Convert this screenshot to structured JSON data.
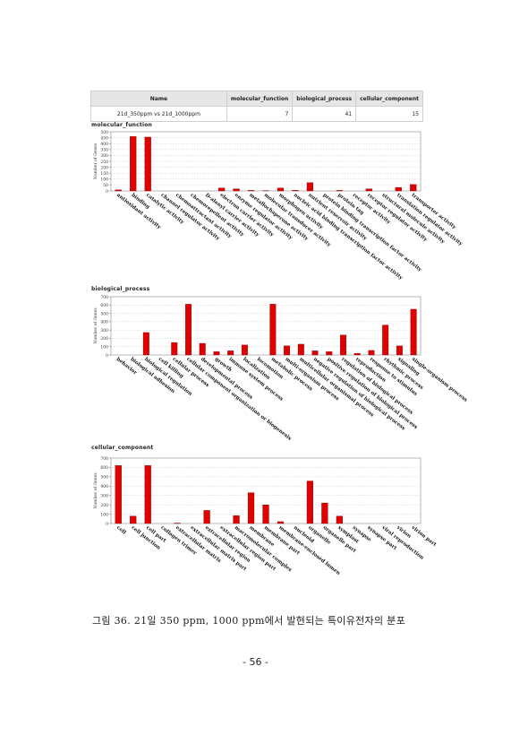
{
  "table": {
    "headers": [
      "Name",
      "molecular_function",
      "biological_process",
      "cellular_component"
    ],
    "row": [
      "21d_350ppm vs 21d_1000ppm",
      "7",
      "41",
      "15"
    ]
  },
  "colors": {
    "bar": "#e00000",
    "grid": "#c8c8c8"
  },
  "chart_data": [
    {
      "type": "bar",
      "title": "molecular_function",
      "ylabel": "Number of Genes",
      "ylim": [
        0,
        500
      ],
      "yticks": [
        0,
        50,
        100,
        150,
        200,
        250,
        300,
        350,
        400,
        450,
        500
      ],
      "categories": [
        "antioxidant activity",
        "binding",
        "catalytic activity",
        "channel regulator activity",
        "chemoattractant activity",
        "chemorepellent activity",
        "D-alanyl carrier activity",
        "electron carrier activity",
        "enzyme regulator activity",
        "metallochaperone activity",
        "molecular transducer activity",
        "morphogen activity",
        "nucleic acid binding transcription factor activity",
        "nutrient reservoir activity",
        "protein binding transcription factor activity",
        "protein tag",
        "receptor activity",
        "receptor regulator activity",
        "structural molecule activity",
        "translation regulator activity",
        "transporter activity"
      ],
      "values": [
        10,
        460,
        455,
        0,
        0,
        0,
        0,
        25,
        18,
        5,
        3,
        25,
        5,
        70,
        0,
        5,
        0,
        18,
        0,
        30,
        55
      ],
      "grid": true
    },
    {
      "type": "bar",
      "title": "biological_process",
      "ylabel": "Number of Genes",
      "ylim": [
        0,
        700
      ],
      "yticks": [
        0,
        100,
        200,
        300,
        400,
        500,
        600,
        700
      ],
      "categories": [
        "behavior",
        "biological adhesion",
        "biological regulation",
        "cell killing",
        "cellular process",
        "cellular component organization or biogenesis",
        "developmental process",
        "growth",
        "immune system process",
        "localization",
        "locomotion",
        "metabolic process",
        "multi-organism process",
        "multicellular organismal process",
        "negative regulation of biological process",
        "positive regulation of biological process",
        "regulation of biological process",
        "reproduction",
        "response to stimulus",
        "rhythmic process",
        "signaling",
        "single-organism process"
      ],
      "values": [
        0,
        0,
        270,
        0,
        150,
        610,
        140,
        40,
        50,
        120,
        0,
        610,
        110,
        130,
        50,
        40,
        240,
        20,
        55,
        360,
        110,
        550
      ],
      "grid": true
    },
    {
      "type": "bar",
      "title": "cellular_component",
      "ylabel": "Number of Genes",
      "ylim": [
        0,
        700
      ],
      "yticks": [
        0,
        100,
        200,
        300,
        400,
        500,
        600,
        700
      ],
      "categories": [
        "cell",
        "cell junction",
        "cell part",
        "collagen trimer",
        "extracellular matrix",
        "extracellular matrix part",
        "extracellular region",
        "extracellular region part",
        "macromolecular complex",
        "membrane",
        "membrane part",
        "membrane-enclosed lumen",
        "nucleoid",
        "organelle",
        "organelle part",
        "symplast",
        "synapse",
        "synapse part",
        "viral reproduction",
        "virion",
        "virion part"
      ],
      "values": [
        620,
        80,
        620,
        0,
        5,
        0,
        140,
        0,
        85,
        330,
        200,
        20,
        0,
        455,
        220,
        80,
        0,
        0,
        0,
        0,
        0
      ],
      "grid": true
    }
  ],
  "caption": "그림 36. 21일 350 ppm, 1000 ppm에서 발현되는 특이유전자의 분포",
  "page_number": "- 56 -"
}
